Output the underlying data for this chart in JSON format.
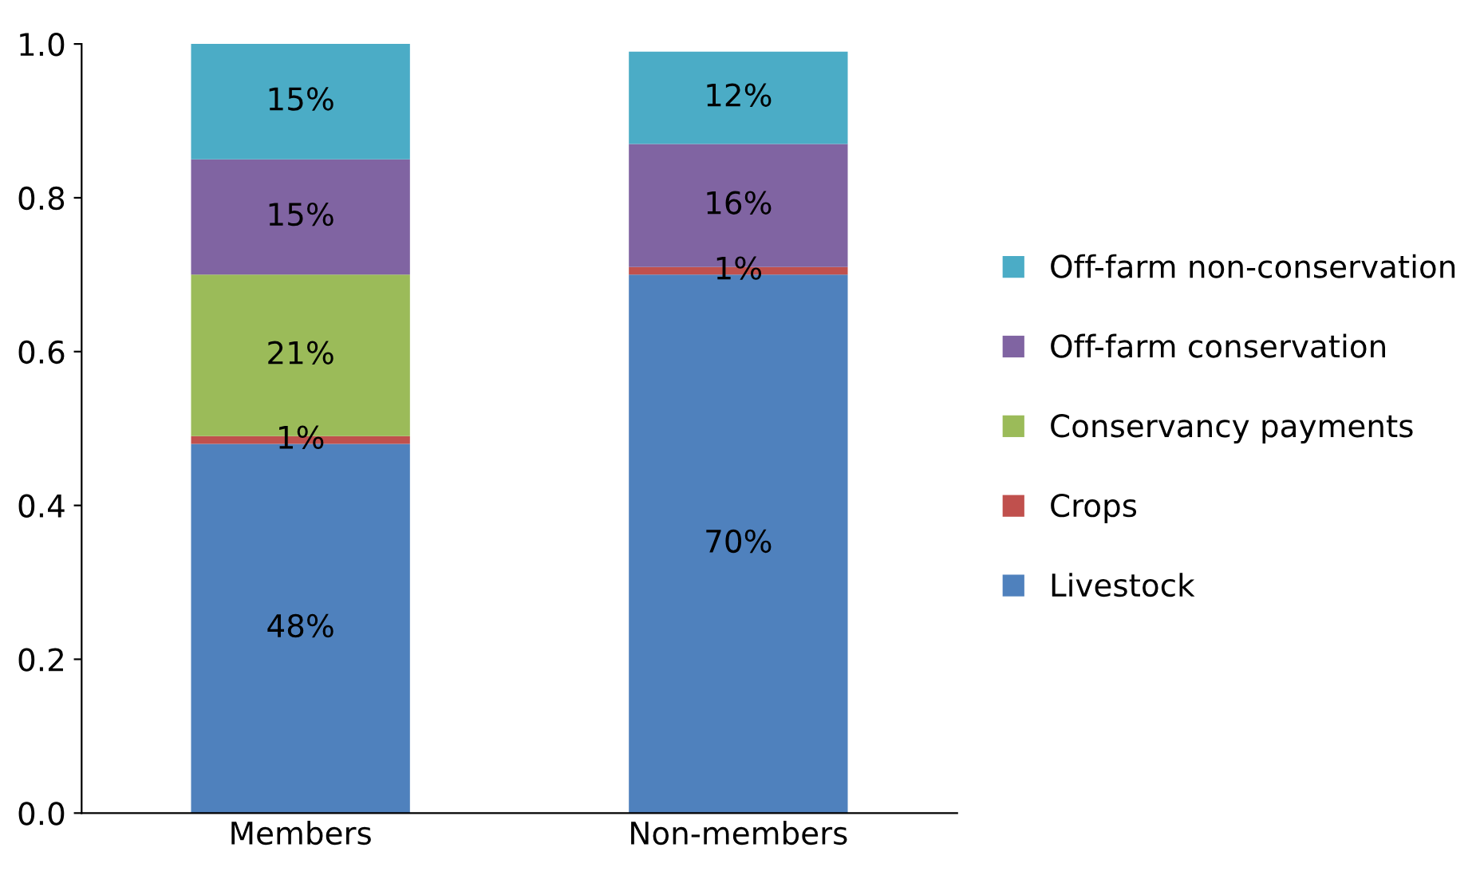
{
  "chart_data": {
    "type": "bar",
    "stacked": true,
    "categories": [
      "Members",
      "Non-members"
    ],
    "series": [
      {
        "name": "Livestock",
        "color": "#4f81bd",
        "values": [
          0.48,
          0.7
        ],
        "value_labels": [
          "48%",
          "70%"
        ]
      },
      {
        "name": "Crops",
        "color": "#c0504d",
        "values": [
          0.01,
          0.01
        ],
        "value_labels": [
          "1%",
          "1%"
        ]
      },
      {
        "name": "Conservancy payments",
        "color": "#9bbb59",
        "values": [
          0.21,
          null
        ],
        "value_labels": [
          "21%",
          null
        ]
      },
      {
        "name": "Off-farm conservation",
        "color": "#8064a2",
        "values": [
          0.15,
          0.16
        ],
        "value_labels": [
          "15%",
          "16%"
        ]
      },
      {
        "name": "Off-farm non-conservation",
        "color": "#4bacc6",
        "values": [
          0.15,
          0.12
        ],
        "value_labels": [
          "15%",
          "12%"
        ]
      }
    ],
    "ylim": [
      0,
      1
    ],
    "yticks": [
      {
        "value": 0,
        "label": "0.0"
      },
      {
        "value": 0.2,
        "label": "0.2"
      },
      {
        "value": 0.4,
        "label": "0.4"
      },
      {
        "value": 0.6,
        "label": "0.6"
      },
      {
        "value": 0.8,
        "label": "0.8"
      },
      {
        "value": 1,
        "label": "1.0"
      }
    ],
    "grid": false,
    "legend": "right"
  }
}
